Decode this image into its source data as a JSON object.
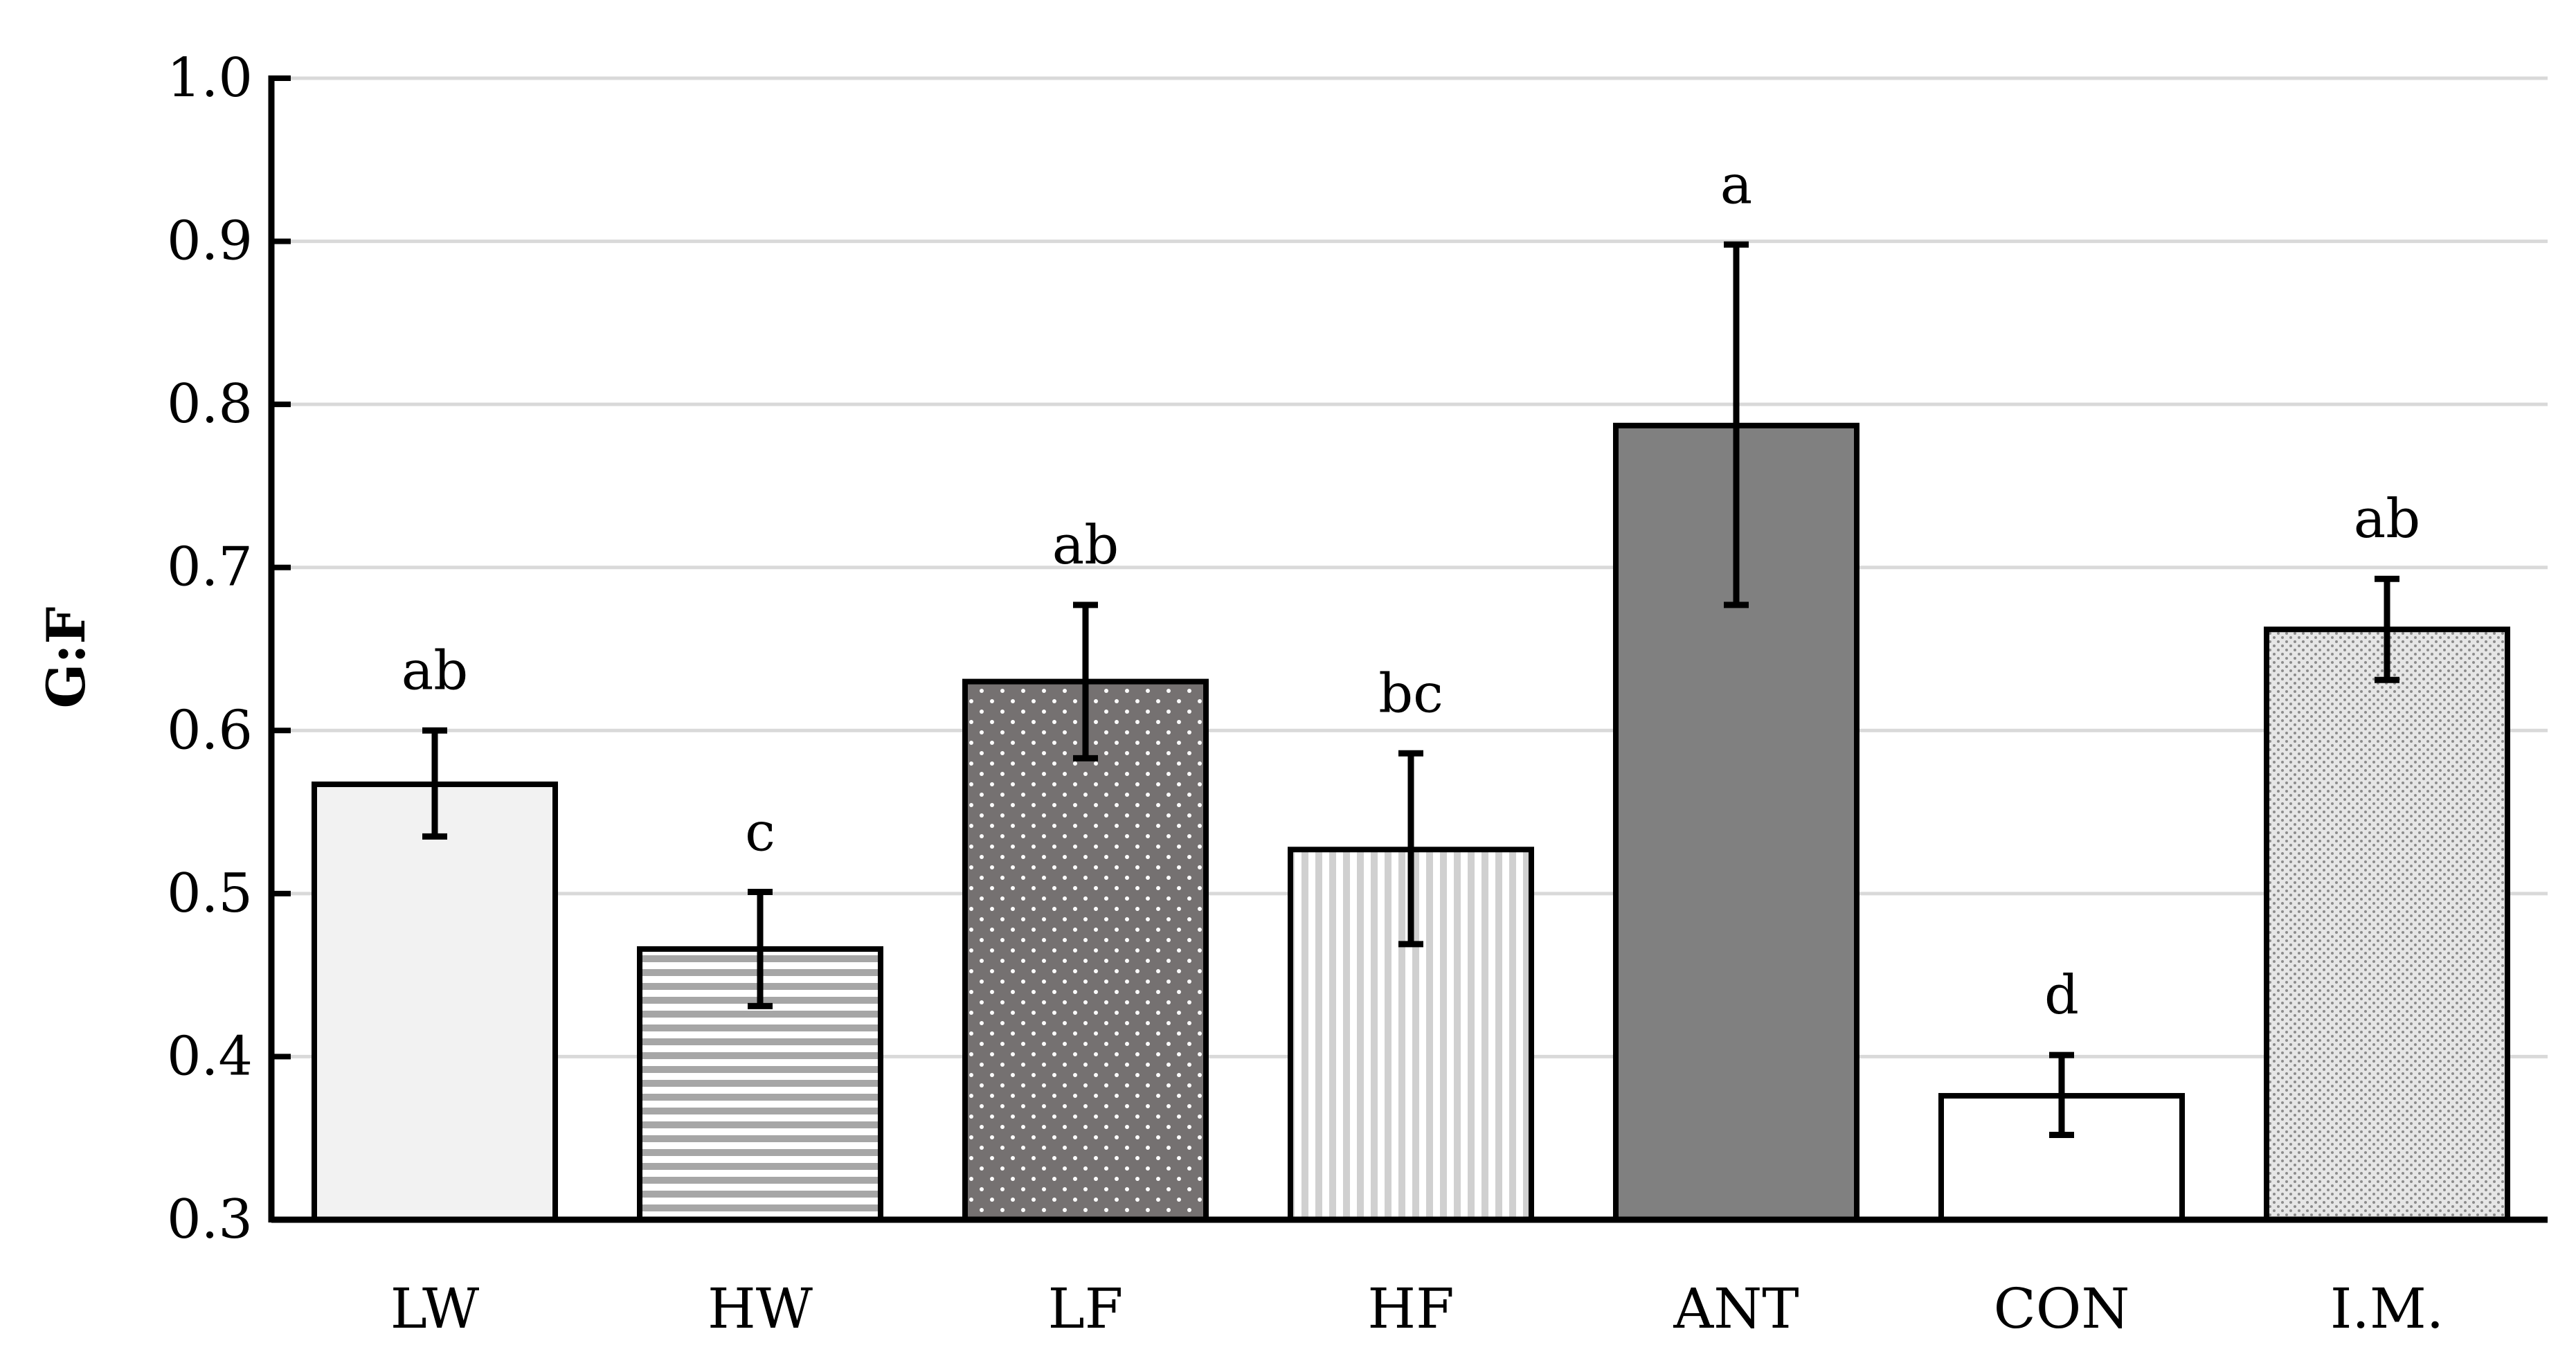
{
  "chart_data": {
    "type": "bar",
    "title": "",
    "xlabel": "",
    "ylabel": "G:F",
    "ylim": [
      0.3,
      1.0
    ],
    "yticks": [
      0.3,
      0.4,
      0.5,
      0.6,
      0.7,
      0.8,
      0.9,
      1.0
    ],
    "ytick_labels": [
      "0.3",
      "0.4",
      "0.5",
      "0.6",
      "0.7",
      "0.8",
      "0.9",
      "1.0"
    ],
    "grid": true,
    "categories": [
      "LW",
      "HW",
      "LF",
      "HF",
      "ANT",
      "CON",
      "I.M."
    ],
    "values": [
      0.567,
      0.466,
      0.63,
      0.527,
      0.787,
      0.376,
      0.662
    ],
    "error_low": [
      0.535,
      0.431,
      0.583,
      0.469,
      0.677,
      0.352,
      0.631
    ],
    "error_high": [
      0.6,
      0.501,
      0.677,
      0.586,
      0.898,
      0.401,
      0.693
    ],
    "annotations": [
      "ab",
      "c",
      "ab",
      "bc",
      "a",
      "d",
      "ab"
    ],
    "fills": [
      "solid-light",
      "horizontal-stripes",
      "dark-dots",
      "vertical-stripes",
      "solid-dark",
      "solid-white",
      "fine-mesh"
    ],
    "colors": {
      "light": "#f2f2f2",
      "dark": "#808080",
      "dots_bg": "#757171",
      "stripe": "#a6a6a6",
      "vstripe": "#d0d0d0",
      "mesh": "#b0b0b0",
      "grid": "#d9d9d9",
      "axis": "#000000"
    }
  }
}
